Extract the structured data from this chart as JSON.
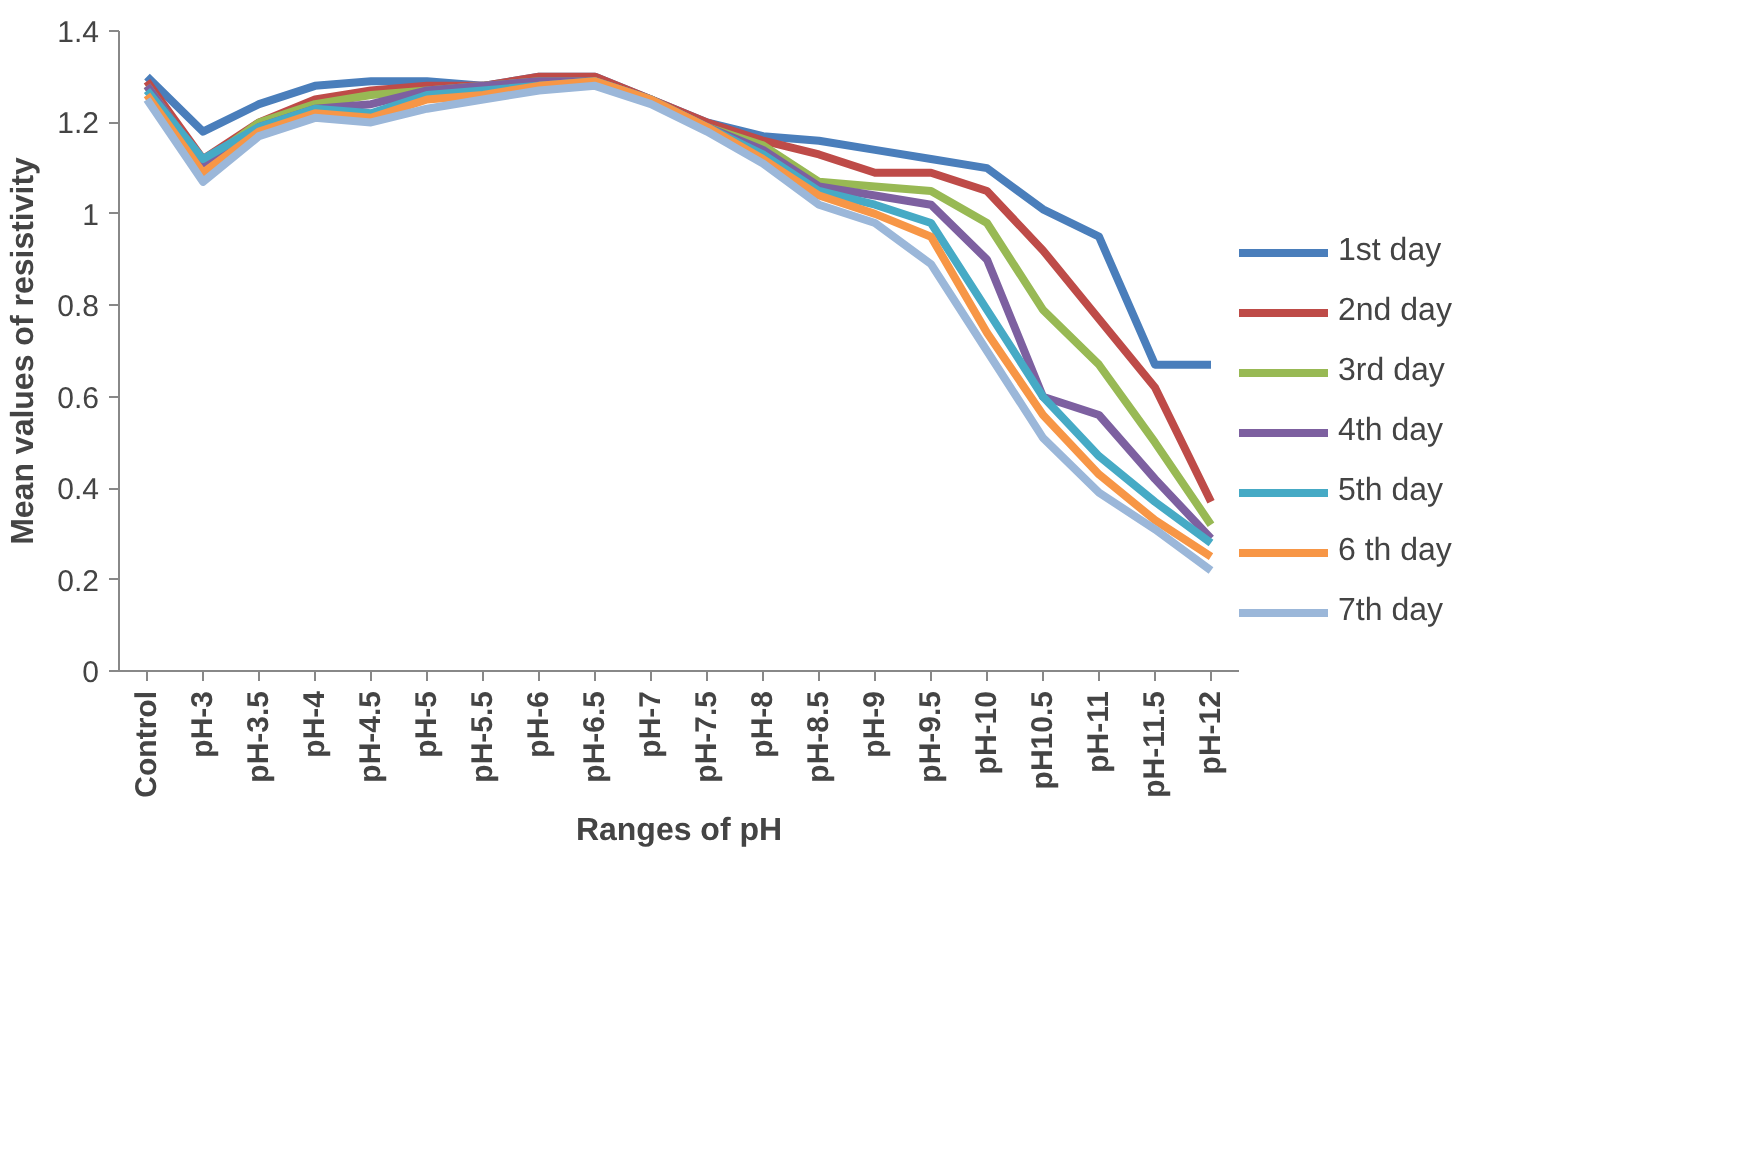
{
  "chart_data": {
    "type": "line",
    "xlabel": "Ranges of pH",
    "ylabel": "Mean values of resistivity",
    "categories": [
      "Control",
      "pH-3",
      "pH-3.5",
      "pH-4",
      "pH-4.5",
      "pH-5",
      "pH-5.5",
      "pH-6",
      "pH-6.5",
      "pH-7",
      "pH-7.5",
      "pH-8",
      "pH-8.5",
      "pH-9",
      "pH-9.5",
      "pH-10",
      "pH10.5",
      "pH-11",
      "pH-11.5",
      "pH-12"
    ],
    "ylim": [
      0,
      1.4
    ],
    "yticks": [
      0,
      0.2,
      0.4,
      0.6,
      0.8,
      1,
      1.2,
      1.4
    ],
    "grid": false,
    "legend": "right",
    "marker": "none",
    "line_style": "solid",
    "series": [
      {
        "name": "1st day",
        "color": "#4a7ebb",
        "values": [
          1.3,
          1.18,
          1.24,
          1.28,
          1.29,
          1.29,
          1.28,
          1.3,
          1.3,
          1.25,
          1.2,
          1.17,
          1.16,
          1.14,
          1.12,
          1.1,
          1.01,
          0.95,
          0.67,
          0.67
        ]
      },
      {
        "name": "2nd day",
        "color": "#be4b48",
        "values": [
          1.29,
          1.12,
          1.2,
          1.25,
          1.27,
          1.28,
          1.28,
          1.3,
          1.3,
          1.25,
          1.2,
          1.16,
          1.13,
          1.09,
          1.09,
          1.05,
          0.92,
          0.77,
          0.62,
          0.37
        ]
      },
      {
        "name": "3rd day",
        "color": "#98b954",
        "values": [
          1.28,
          1.11,
          1.2,
          1.24,
          1.26,
          1.27,
          1.28,
          1.29,
          1.29,
          1.25,
          1.19,
          1.15,
          1.07,
          1.06,
          1.05,
          0.98,
          0.79,
          0.67,
          0.5,
          0.32
        ]
      },
      {
        "name": "4th day",
        "color": "#7d60a0",
        "values": [
          1.28,
          1.11,
          1.19,
          1.23,
          1.24,
          1.27,
          1.28,
          1.29,
          1.29,
          1.25,
          1.19,
          1.14,
          1.06,
          1.04,
          1.02,
          0.9,
          0.6,
          0.56,
          0.42,
          0.29
        ]
      },
      {
        "name": "5th day",
        "color": "#46aac5",
        "values": [
          1.27,
          1.12,
          1.19,
          1.23,
          1.22,
          1.26,
          1.27,
          1.28,
          1.29,
          1.25,
          1.19,
          1.13,
          1.05,
          1.02,
          0.98,
          0.79,
          0.6,
          0.47,
          0.37,
          0.28
        ]
      },
      {
        "name": "6 th day",
        "color": "#f79646",
        "values": [
          1.26,
          1.09,
          1.18,
          1.22,
          1.21,
          1.25,
          1.26,
          1.28,
          1.29,
          1.25,
          1.19,
          1.12,
          1.04,
          1.0,
          0.95,
          0.74,
          0.56,
          0.43,
          0.33,
          0.25
        ]
      },
      {
        "name": "7th day",
        "color": "#9bb7d9",
        "values": [
          1.25,
          1.07,
          1.17,
          1.21,
          1.2,
          1.23,
          1.25,
          1.27,
          1.28,
          1.24,
          1.18,
          1.11,
          1.02,
          0.98,
          0.89,
          0.7,
          0.51,
          0.39,
          0.31,
          0.22
        ]
      }
    ]
  }
}
